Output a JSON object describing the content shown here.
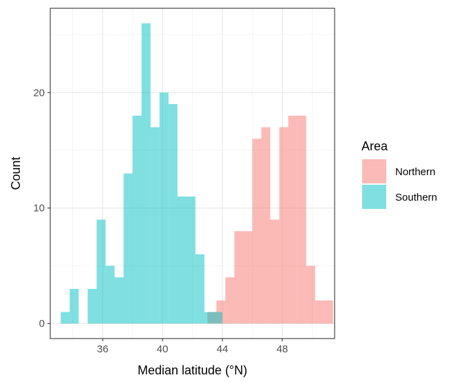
{
  "chart_data": {
    "type": "bar",
    "xlabel": "Median latitude (°N)",
    "ylabel": "Count",
    "xlim": [
      32.5,
      51.5
    ],
    "ylim": [
      -1.3,
      27.3
    ],
    "x_ticks": [
      36,
      40,
      44,
      48
    ],
    "y_ticks": [
      0,
      10,
      20
    ],
    "grid": true,
    "bin_width": 0.6,
    "legend": {
      "title": "Area",
      "position": "right"
    },
    "series": [
      {
        "name": "Northern",
        "color": "#F8766D",
        "bins": [
          {
            "x": 43.3,
            "count": 1
          },
          {
            "x": 43.9,
            "count": 2
          },
          {
            "x": 44.5,
            "count": 4
          },
          {
            "x": 45.1,
            "count": 8
          },
          {
            "x": 45.7,
            "count": 8
          },
          {
            "x": 46.3,
            "count": 16
          },
          {
            "x": 46.9,
            "count": 17
          },
          {
            "x": 47.5,
            "count": 9
          },
          {
            "x": 48.1,
            "count": 17
          },
          {
            "x": 48.7,
            "count": 18
          },
          {
            "x": 49.3,
            "count": 18
          },
          {
            "x": 49.9,
            "count": 5
          },
          {
            "x": 50.5,
            "count": 2
          },
          {
            "x": 51.1,
            "count": 2
          }
        ]
      },
      {
        "name": "Southern",
        "color": "#00BFC4",
        "bins": [
          {
            "x": 33.5,
            "count": 1
          },
          {
            "x": 34.1,
            "count": 3
          },
          {
            "x": 35.3,
            "count": 3
          },
          {
            "x": 35.9,
            "count": 9
          },
          {
            "x": 36.5,
            "count": 5
          },
          {
            "x": 37.1,
            "count": 4
          },
          {
            "x": 37.7,
            "count": 13
          },
          {
            "x": 38.3,
            "count": 18
          },
          {
            "x": 38.9,
            "count": 26
          },
          {
            "x": 39.5,
            "count": 17
          },
          {
            "x": 40.1,
            "count": 20
          },
          {
            "x": 40.7,
            "count": 19
          },
          {
            "x": 41.3,
            "count": 11
          },
          {
            "x": 41.9,
            "count": 11
          },
          {
            "x": 42.5,
            "count": 6
          },
          {
            "x": 43.1,
            "count": 1
          },
          {
            "x": 43.7,
            "count": 1
          }
        ]
      }
    ]
  }
}
